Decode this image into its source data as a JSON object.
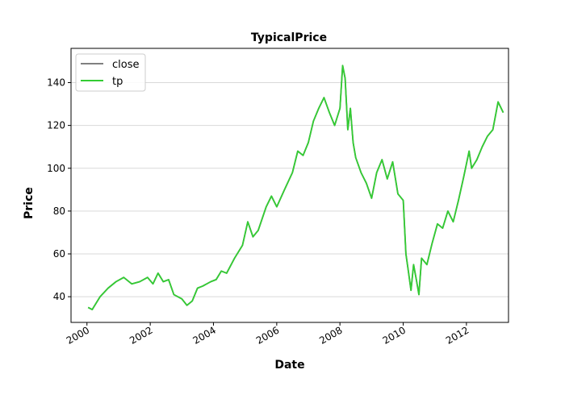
{
  "chart_data": {
    "type": "line",
    "title": "TypicalPrice",
    "xlabel": "Date",
    "ylabel": "Price",
    "xlim": [
      "1999-07-01",
      "2013-05-01"
    ],
    "ylim": [
      28,
      156
    ],
    "x_ticks": [
      "2000",
      "2002",
      "2004",
      "2006",
      "2008",
      "2010",
      "2012"
    ],
    "y_ticks": [
      40,
      60,
      80,
      100,
      120,
      140
    ],
    "grid": "horizontal",
    "legend_position": "top-left",
    "series": [
      {
        "name": "close",
        "color": "#808080",
        "points": [
          [
            "2000-01-15",
            35
          ],
          [
            "2000-03-01",
            34
          ],
          [
            "2000-06-01",
            40
          ],
          [
            "2000-09-01",
            44
          ],
          [
            "2000-12-01",
            47
          ],
          [
            "2001-03-01",
            49
          ],
          [
            "2001-06-01",
            46
          ],
          [
            "2001-09-01",
            47
          ],
          [
            "2001-12-01",
            49
          ],
          [
            "2002-02-01",
            46
          ],
          [
            "2002-04-01",
            51
          ],
          [
            "2002-06-01",
            47
          ],
          [
            "2002-08-01",
            48
          ],
          [
            "2002-10-01",
            41
          ],
          [
            "2003-01-01",
            39
          ],
          [
            "2003-03-01",
            36
          ],
          [
            "2003-05-01",
            38
          ],
          [
            "2003-07-01",
            44
          ],
          [
            "2003-09-01",
            45
          ],
          [
            "2003-12-01",
            47
          ],
          [
            "2004-02-01",
            48
          ],
          [
            "2004-04-01",
            52
          ],
          [
            "2004-06-01",
            51
          ],
          [
            "2004-09-01",
            58
          ],
          [
            "2004-12-01",
            64
          ],
          [
            "2005-02-01",
            75
          ],
          [
            "2005-04-01",
            68
          ],
          [
            "2005-06-01",
            71
          ],
          [
            "2005-09-01",
            82
          ],
          [
            "2005-11-01",
            87
          ],
          [
            "2006-01-01",
            82
          ],
          [
            "2006-04-01",
            90
          ],
          [
            "2006-07-01",
            98
          ],
          [
            "2006-09-01",
            108
          ],
          [
            "2006-11-01",
            106
          ],
          [
            "2007-01-01",
            112
          ],
          [
            "2007-03-01",
            122
          ],
          [
            "2007-05-01",
            128
          ],
          [
            "2007-07-01",
            133
          ],
          [
            "2007-09-01",
            126
          ],
          [
            "2007-11-01",
            120
          ],
          [
            "2008-01-01",
            128
          ],
          [
            "2008-02-01",
            148
          ],
          [
            "2008-03-01",
            142
          ],
          [
            "2008-04-01",
            118
          ],
          [
            "2008-05-01",
            128
          ],
          [
            "2008-06-01",
            112
          ],
          [
            "2008-07-01",
            105
          ],
          [
            "2008-09-01",
            98
          ],
          [
            "2008-11-01",
            93
          ],
          [
            "2009-01-01",
            86
          ],
          [
            "2009-03-01",
            98
          ],
          [
            "2009-05-01",
            104
          ],
          [
            "2009-07-01",
            95
          ],
          [
            "2009-09-01",
            103
          ],
          [
            "2009-11-01",
            88
          ],
          [
            "2010-01-01",
            85
          ],
          [
            "2010-02-01",
            60
          ],
          [
            "2010-03-01",
            52
          ],
          [
            "2010-04-01",
            43
          ],
          [
            "2010-05-01",
            55
          ],
          [
            "2010-06-01",
            48
          ],
          [
            "2010-07-01",
            41
          ],
          [
            "2010-08-01",
            58
          ],
          [
            "2010-10-01",
            55
          ],
          [
            "2010-12-01",
            65
          ],
          [
            "2011-02-01",
            74
          ],
          [
            "2011-04-01",
            72
          ],
          [
            "2011-06-01",
            80
          ],
          [
            "2011-08-01",
            75
          ],
          [
            "2011-10-01",
            85
          ],
          [
            "2011-12-01",
            96
          ],
          [
            "2012-02-01",
            108
          ],
          [
            "2012-03-01",
            100
          ],
          [
            "2012-05-01",
            104
          ],
          [
            "2012-07-01",
            110
          ],
          [
            "2012-09-01",
            115
          ],
          [
            "2012-11-01",
            118
          ],
          [
            "2013-01-01",
            131
          ],
          [
            "2013-03-01",
            126
          ]
        ]
      },
      {
        "name": "tp",
        "color": "#33cc33",
        "points": [
          [
            "2000-01-15",
            35
          ],
          [
            "2000-03-01",
            34
          ],
          [
            "2000-06-01",
            40
          ],
          [
            "2000-09-01",
            44
          ],
          [
            "2000-12-01",
            47
          ],
          [
            "2001-03-01",
            49
          ],
          [
            "2001-06-01",
            46
          ],
          [
            "2001-09-01",
            47
          ],
          [
            "2001-12-01",
            49
          ],
          [
            "2002-02-01",
            46
          ],
          [
            "2002-04-01",
            51
          ],
          [
            "2002-06-01",
            47
          ],
          [
            "2002-08-01",
            48
          ],
          [
            "2002-10-01",
            41
          ],
          [
            "2003-01-01",
            39
          ],
          [
            "2003-03-01",
            36
          ],
          [
            "2003-05-01",
            38
          ],
          [
            "2003-07-01",
            44
          ],
          [
            "2003-09-01",
            45
          ],
          [
            "2003-12-01",
            47
          ],
          [
            "2004-02-01",
            48
          ],
          [
            "2004-04-01",
            52
          ],
          [
            "2004-06-01",
            51
          ],
          [
            "2004-09-01",
            58
          ],
          [
            "2004-12-01",
            64
          ],
          [
            "2005-02-01",
            75
          ],
          [
            "2005-04-01",
            68
          ],
          [
            "2005-06-01",
            71
          ],
          [
            "2005-09-01",
            82
          ],
          [
            "2005-11-01",
            87
          ],
          [
            "2006-01-01",
            82
          ],
          [
            "2006-04-01",
            90
          ],
          [
            "2006-07-01",
            98
          ],
          [
            "2006-09-01",
            108
          ],
          [
            "2006-11-01",
            106
          ],
          [
            "2007-01-01",
            112
          ],
          [
            "2007-03-01",
            122
          ],
          [
            "2007-05-01",
            128
          ],
          [
            "2007-07-01",
            133
          ],
          [
            "2007-09-01",
            126
          ],
          [
            "2007-11-01",
            120
          ],
          [
            "2008-01-01",
            128
          ],
          [
            "2008-02-01",
            148
          ],
          [
            "2008-03-01",
            142
          ],
          [
            "2008-04-01",
            118
          ],
          [
            "2008-05-01",
            128
          ],
          [
            "2008-06-01",
            112
          ],
          [
            "2008-07-01",
            105
          ],
          [
            "2008-09-01",
            98
          ],
          [
            "2008-11-01",
            93
          ],
          [
            "2009-01-01",
            86
          ],
          [
            "2009-03-01",
            98
          ],
          [
            "2009-05-01",
            104
          ],
          [
            "2009-07-01",
            95
          ],
          [
            "2009-09-01",
            103
          ],
          [
            "2009-11-01",
            88
          ],
          [
            "2010-01-01",
            85
          ],
          [
            "2010-02-01",
            60
          ],
          [
            "2010-03-01",
            52
          ],
          [
            "2010-04-01",
            43
          ],
          [
            "2010-05-01",
            55
          ],
          [
            "2010-06-01",
            48
          ],
          [
            "2010-07-01",
            41
          ],
          [
            "2010-08-01",
            58
          ],
          [
            "2010-10-01",
            55
          ],
          [
            "2010-12-01",
            65
          ],
          [
            "2011-02-01",
            74
          ],
          [
            "2011-04-01",
            72
          ],
          [
            "2011-06-01",
            80
          ],
          [
            "2011-08-01",
            75
          ],
          [
            "2011-10-01",
            85
          ],
          [
            "2011-12-01",
            96
          ],
          [
            "2012-02-01",
            108
          ],
          [
            "2012-03-01",
            100
          ],
          [
            "2012-05-01",
            104
          ],
          [
            "2012-07-01",
            110
          ],
          [
            "2012-09-01",
            115
          ],
          [
            "2012-11-01",
            118
          ],
          [
            "2013-01-01",
            131
          ],
          [
            "2013-03-01",
            126
          ]
        ]
      }
    ]
  }
}
